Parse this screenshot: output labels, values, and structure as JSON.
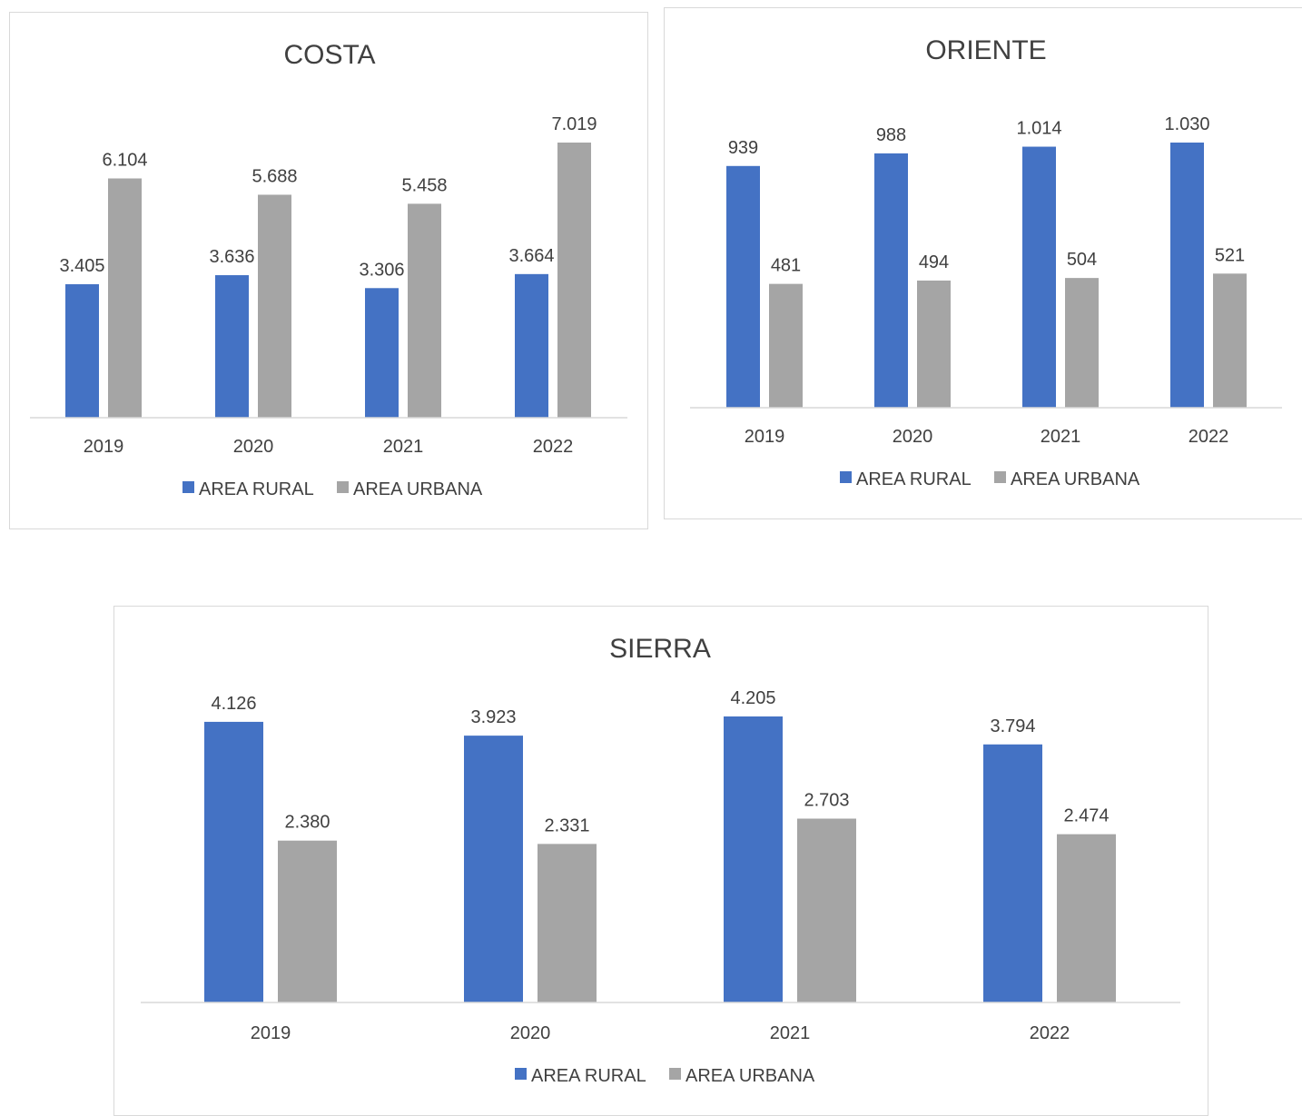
{
  "colors": {
    "rural": "#4472C4",
    "urbana": "#A5A5A5",
    "axis": "#d9d9d9",
    "text": "#404040",
    "title": "#595959"
  },
  "chart_data": [
    {
      "type": "bar",
      "title": "COSTA",
      "categories": [
        "2019",
        "2020",
        "2021",
        "2022"
      ],
      "series": [
        {
          "name": "AREA RURAL",
          "values": [
            3.405,
            3.636,
            3.306,
            3.664
          ],
          "labels": [
            "3.405",
            "3.636",
            "3.306",
            "3.664"
          ]
        },
        {
          "name": "AREA URBANA",
          "values": [
            6.104,
            5.688,
            5.458,
            7.019
          ],
          "labels": [
            "6.104",
            "5.688",
            "5.458",
            "7.019"
          ]
        }
      ],
      "legend": "bottom",
      "grid": false
    },
    {
      "type": "bar",
      "title": "ORIENTE",
      "categories": [
        "2019",
        "2020",
        "2021",
        "2022"
      ],
      "series": [
        {
          "name": "AREA RURAL",
          "values": [
            939,
            988,
            1014,
            1030
          ],
          "labels": [
            "939",
            "988",
            "1.014",
            "1.030"
          ]
        },
        {
          "name": "AREA URBANA",
          "values": [
            481,
            494,
            504,
            521
          ],
          "labels": [
            "481",
            "494",
            "504",
            "521"
          ]
        }
      ],
      "legend": "bottom",
      "grid": false
    },
    {
      "type": "bar",
      "title": "SIERRA",
      "categories": [
        "2019",
        "2020",
        "2021",
        "2022"
      ],
      "series": [
        {
          "name": "AREA RURAL",
          "values": [
            4.126,
            3.923,
            4.205,
            3.794
          ],
          "labels": [
            "4.126",
            "3.923",
            "4.205",
            "3.794"
          ]
        },
        {
          "name": "AREA URBANA",
          "values": [
            2.38,
            2.331,
            2.703,
            2.474
          ],
          "labels": [
            "2.380",
            "2.331",
            "2.703",
            "2.474"
          ]
        }
      ],
      "legend": "bottom",
      "grid": false
    }
  ]
}
